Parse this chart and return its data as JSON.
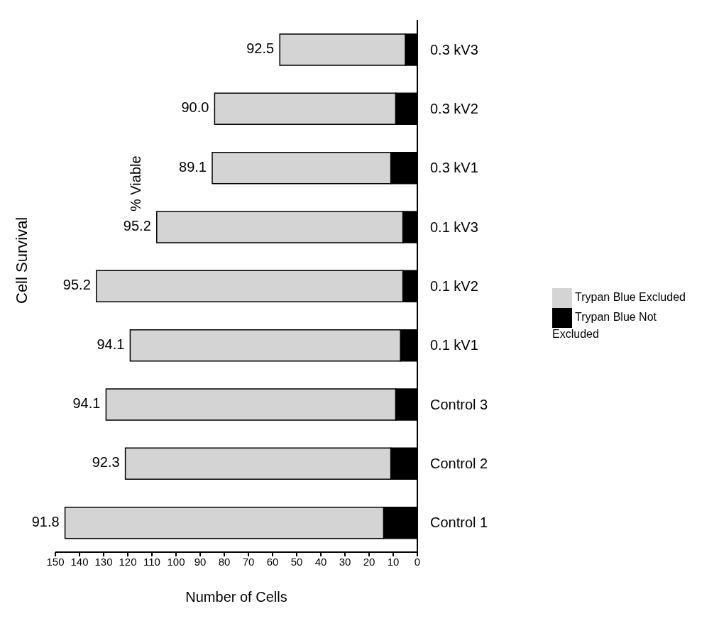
{
  "chart_data": {
    "type": "bar",
    "orientation": "horizontal",
    "stacked": true,
    "title": "Cell Survival",
    "xlabel": "Number of Cells",
    "categories": [
      "0.3 kV3",
      "0.3 kV2",
      "0.3 kV1",
      "0.1 kV3",
      "0.1 kV2",
      "0.1 kV1",
      "Control 3",
      "Control 2",
      "Control 1"
    ],
    "series": [
      {
        "name": "Trypan Blue Not Excluded",
        "color": "#000000",
        "values": [
          5,
          9,
          11,
          6,
          6,
          7,
          9,
          11,
          14
        ]
      },
      {
        "name": "Trypan Blue Excluded",
        "color": "#d4d4d4",
        "values": [
          52,
          75,
          74,
          102,
          127,
          112,
          120,
          110,
          132
        ]
      }
    ],
    "xlim": [
      150,
      0
    ],
    "xticks": [
      0,
      10,
      20,
      30,
      40,
      50,
      60,
      70,
      80,
      90,
      100,
      110,
      120,
      130,
      140,
      150
    ],
    "annotations": [
      "% Viable",
      {
        "text": "92.5",
        "x": 57,
        "y": "0.3 kV3"
      },
      {
        "text": "90.0",
        "x": 84,
        "y": "0.3 kV2"
      },
      {
        "text": "89.1",
        "x": 85,
        "y": "0.3 kV1"
      },
      {
        "text": "95.2",
        "x": 108,
        "y": "0.1 kV3"
      },
      {
        "text": "95.2",
        "x": 133,
        "y": "0.1 kV2"
      },
      {
        "text": "94.1",
        "x": 119,
        "y": "0.1 kV1"
      },
      {
        "text": "94.1",
        "x": 129,
        "y": "Control 3"
      },
      {
        "text": "92.3",
        "x": 121,
        "y": "Control 2"
      },
      {
        "text": "91.8",
        "x": 146,
        "y": "Control 1"
      }
    ],
    "grid": false,
    "legend": "right"
  }
}
